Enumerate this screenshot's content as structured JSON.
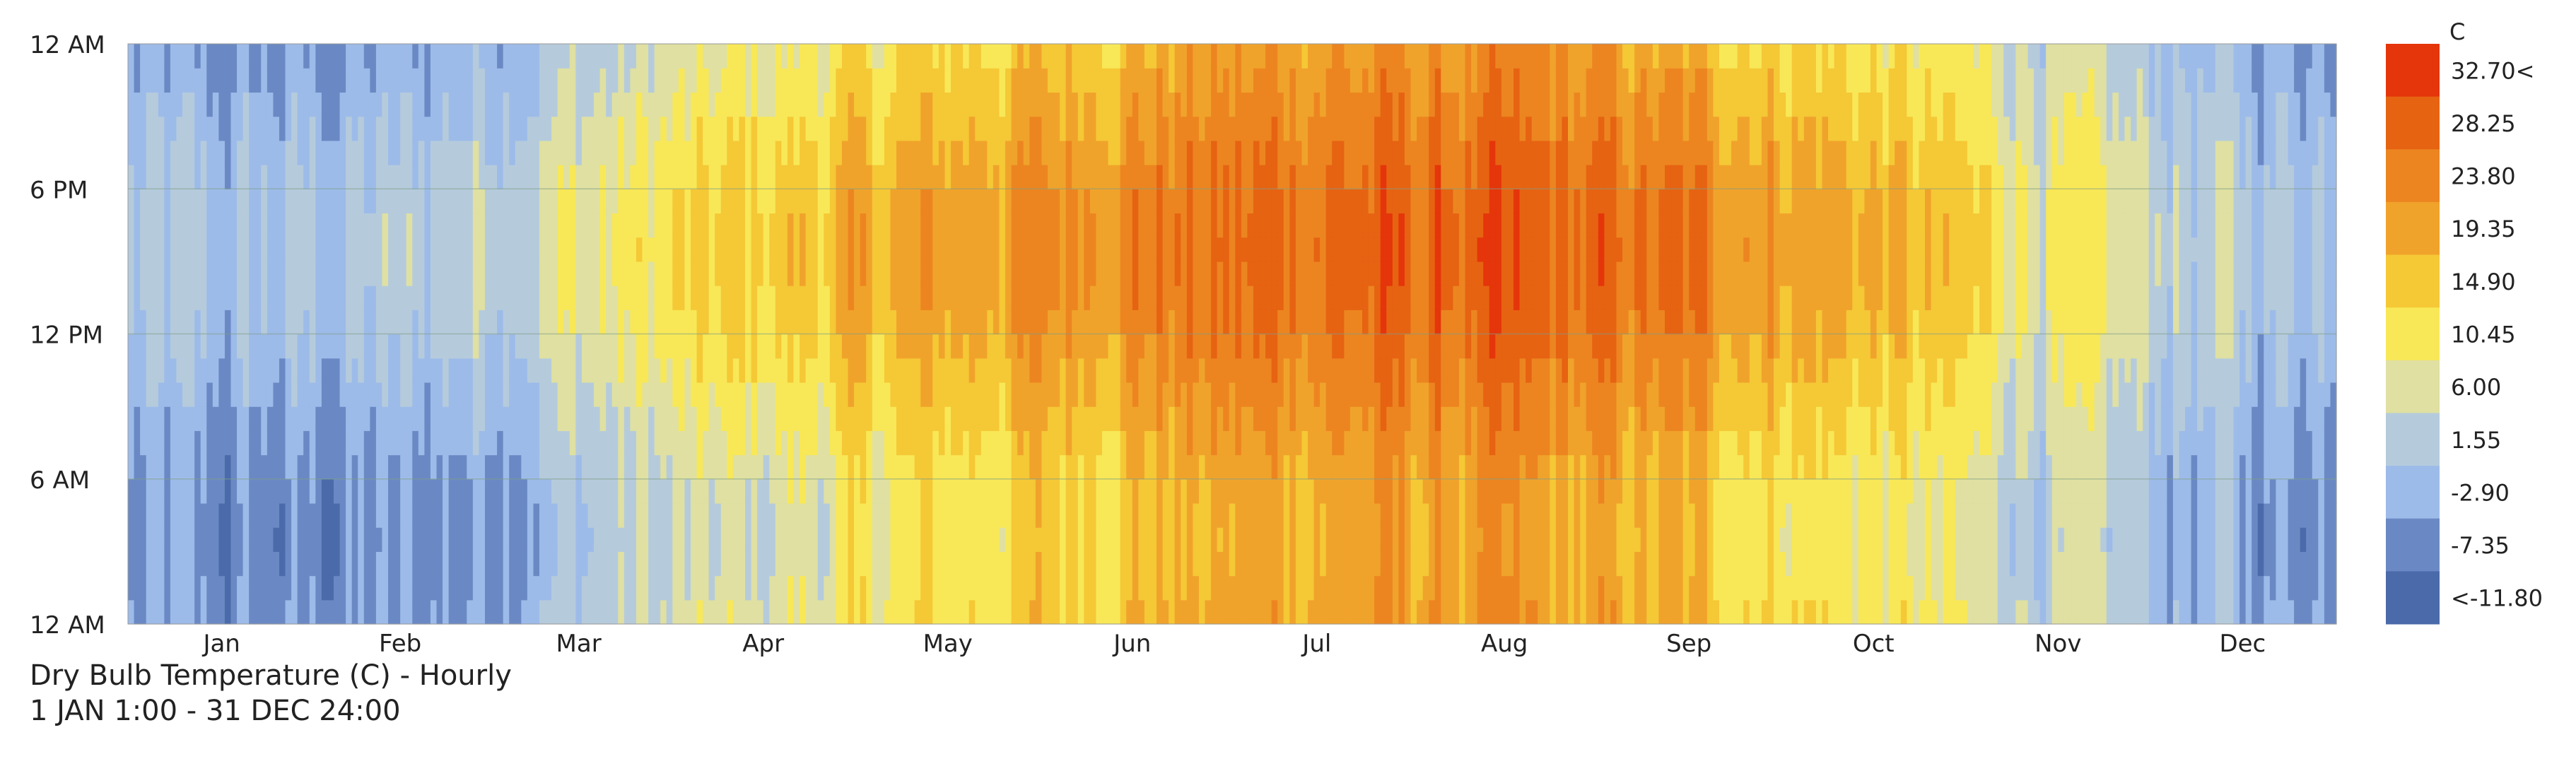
{
  "chart_data": {
    "type": "heatmap",
    "title": "Dry Bulb Temperature (C) - Hourly",
    "subtitle": "1 JAN 1:00 - 31 DEC 24:00",
    "x_axis": {
      "label": "",
      "range": [
        1,
        365
      ],
      "unit": "day of year",
      "tick_labels": [
        "Jan",
        "Feb",
        "Mar",
        "Apr",
        "May",
        "Jun",
        "Jul",
        "Aug",
        "Sep",
        "Oct",
        "Nov",
        "Dec"
      ],
      "month_days": [
        31,
        28,
        31,
        30,
        31,
        30,
        31,
        31,
        30,
        31,
        30,
        31
      ]
    },
    "y_axis": {
      "label": "",
      "range": [
        0,
        24
      ],
      "unit": "hour",
      "tick_values": [
        0,
        6,
        12,
        18,
        24
      ],
      "tick_labels": [
        "12 AM",
        "6 AM",
        "12 PM",
        "6 PM",
        "12 AM"
      ]
    },
    "grid": true,
    "legend": {
      "position": "right",
      "title": "C",
      "labels": [
        "32.70<",
        "28.25",
        "23.80",
        "19.35",
        "14.90",
        "10.45",
        "6.00",
        "1.55",
        "-2.90",
        "-7.35",
        "<-11.80"
      ],
      "thresholds": [
        -11.8,
        -7.35,
        -2.9,
        1.55,
        6.0,
        10.45,
        14.9,
        19.35,
        23.8,
        28.25,
        32.7
      ],
      "colors": [
        "#4a6aaa",
        "#6a89c4",
        "#9dbbe9",
        "#b5cbdc",
        "#dfe0a2",
        "#f8e857",
        "#f5c836",
        "#f0a32b",
        "#ec8520",
        "#e66312",
        "#e5350a"
      ]
    },
    "series": [
      {
        "values_note_free": true,
        "monthly_mean_min": [
          -6,
          -5,
          2,
          7,
          13,
          18,
          21,
          21,
          17,
          11,
          4,
          -3
        ],
        "monthly_mean_max": [
          1,
          3,
          10,
          17,
          22,
          27,
          30,
          30,
          27,
          20,
          10,
          3
        ],
        "peak_hour": 15
      }
    ]
  }
}
